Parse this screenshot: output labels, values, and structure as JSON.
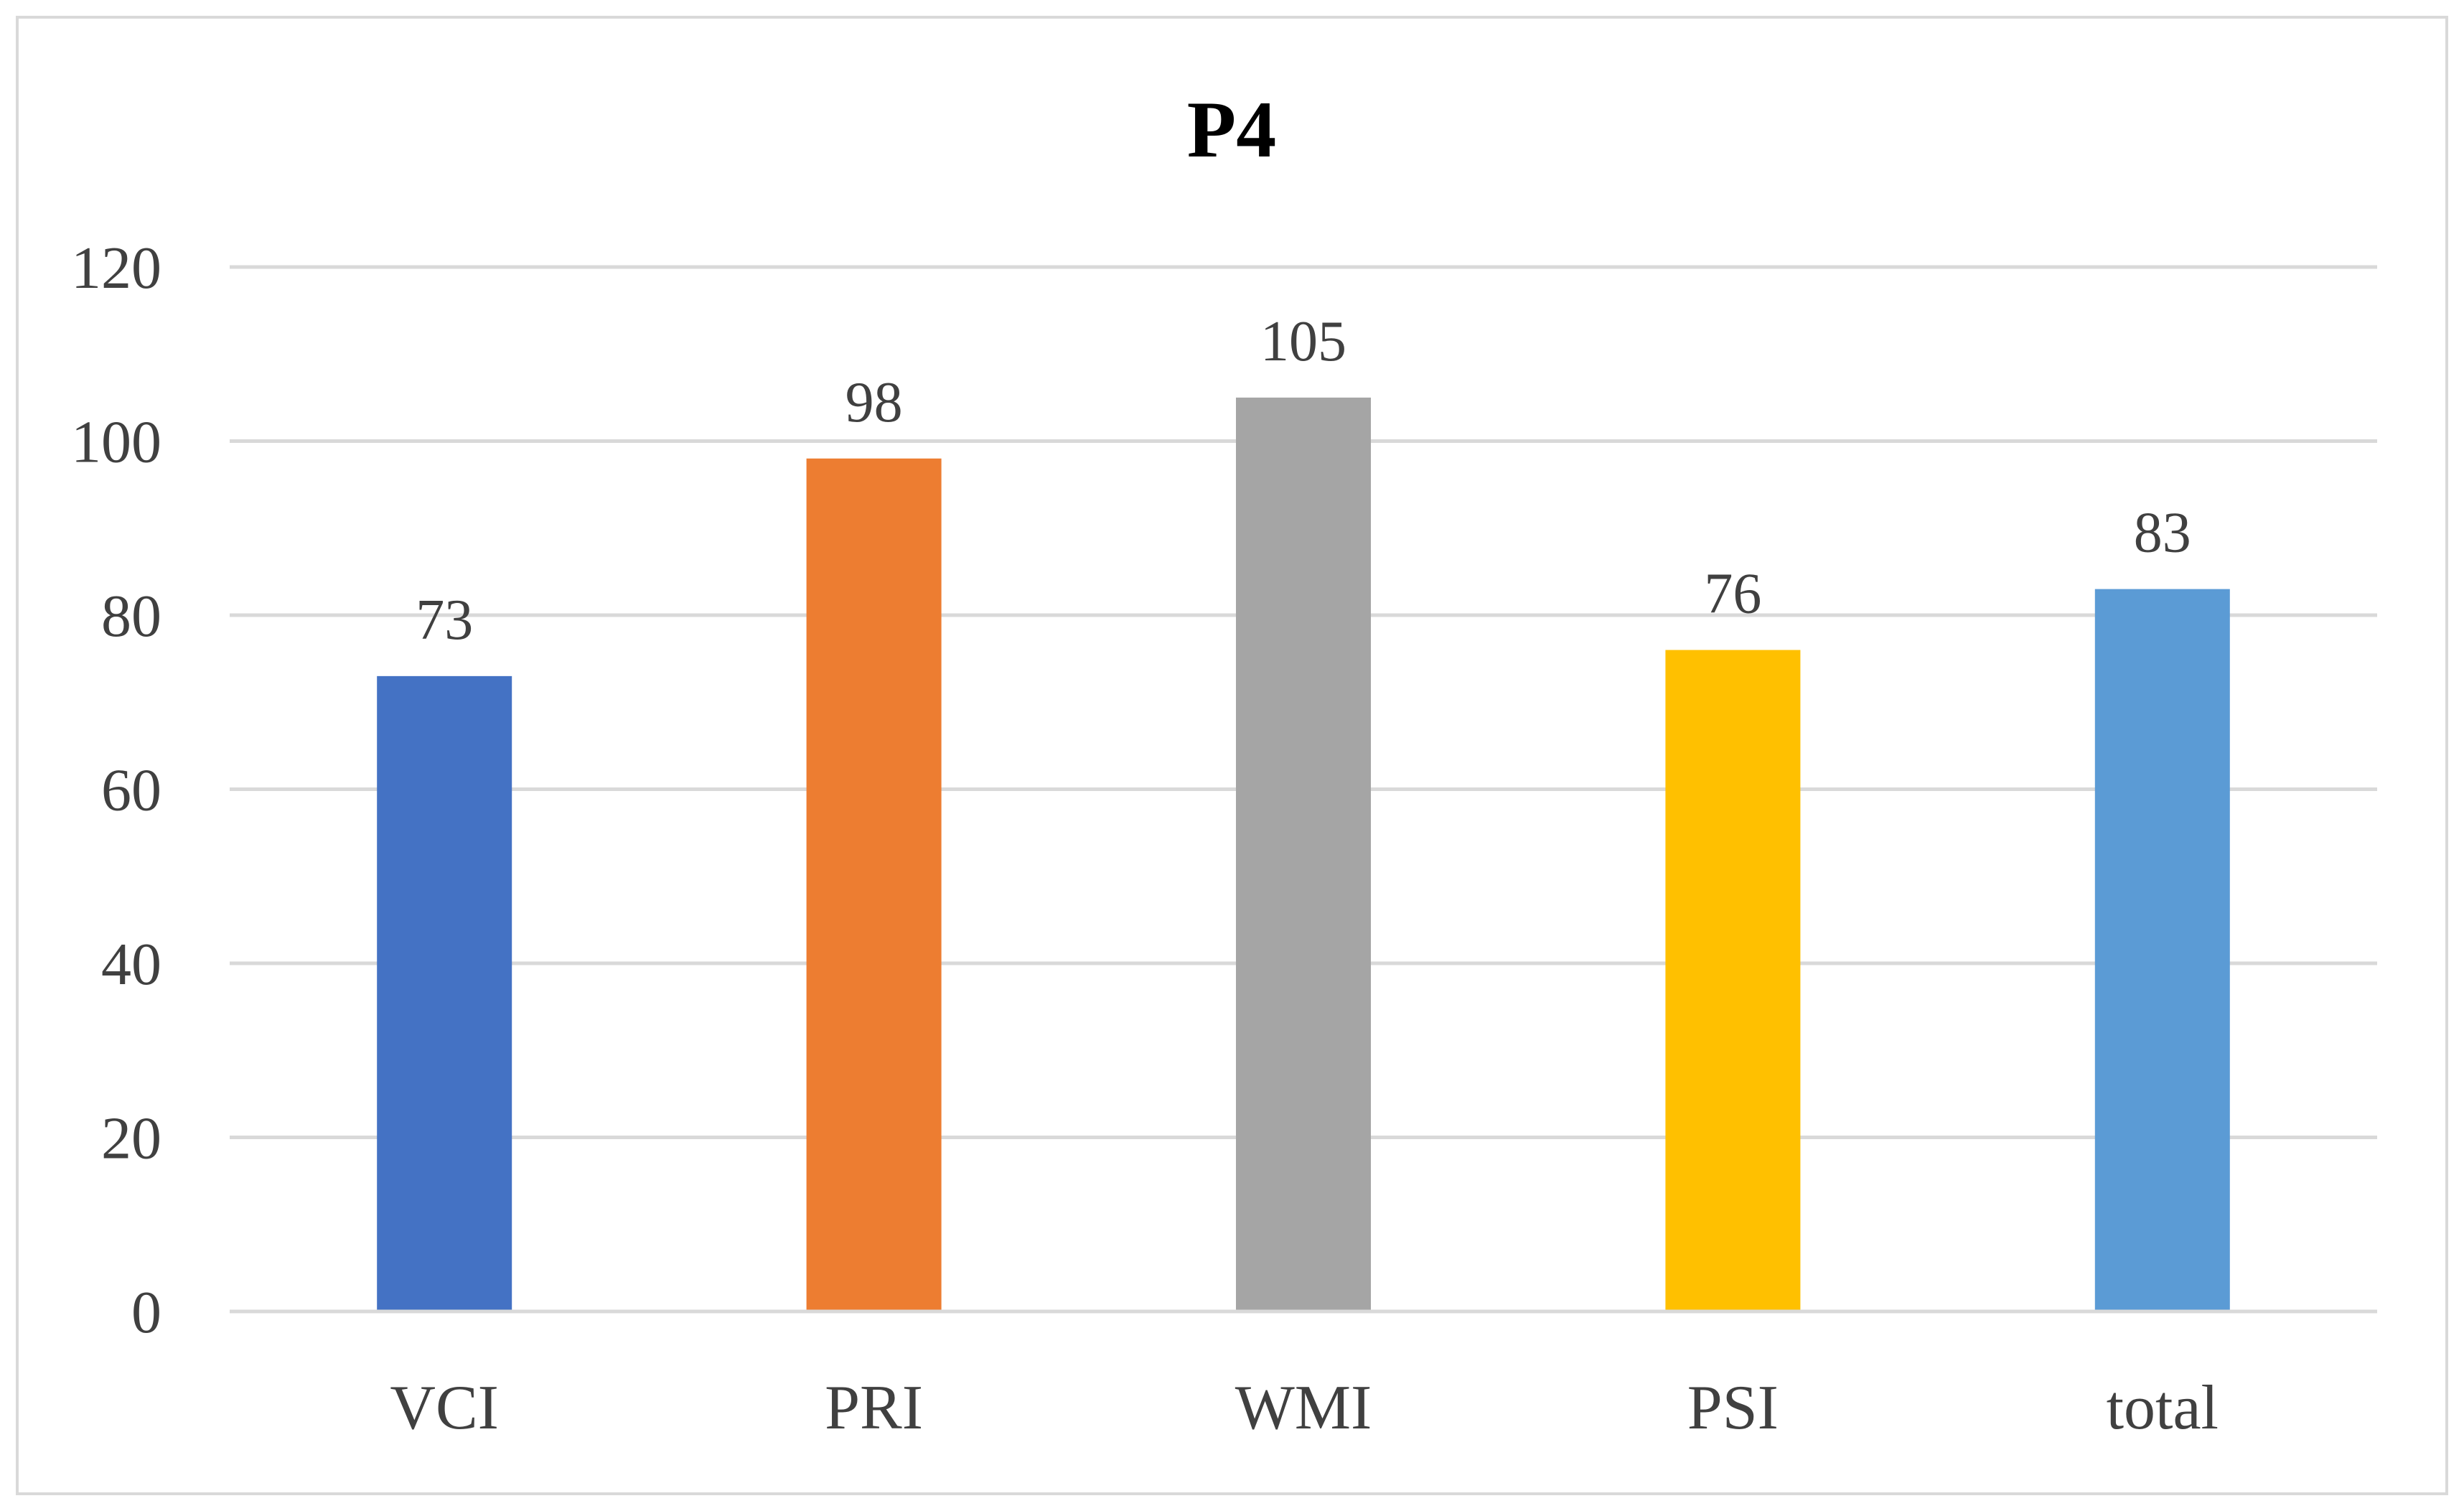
{
  "chart_data": {
    "type": "bar",
    "title": "P4",
    "xlabel": "",
    "ylabel": "",
    "categories": [
      "VCI",
      "PRI",
      "WMI",
      "PSI",
      "total"
    ],
    "values": [
      73,
      98,
      105,
      76,
      83
    ],
    "colors": [
      "#4472c4",
      "#ed7d31",
      "#a5a5a5",
      "#ffc000",
      "#5b9bd5"
    ],
    "ylim": [
      0,
      120
    ],
    "yticks": [
      "0",
      "20",
      "40",
      "60",
      "80",
      "100",
      "120"
    ],
    "grid": true,
    "data_labels": true,
    "legend": "none"
  }
}
